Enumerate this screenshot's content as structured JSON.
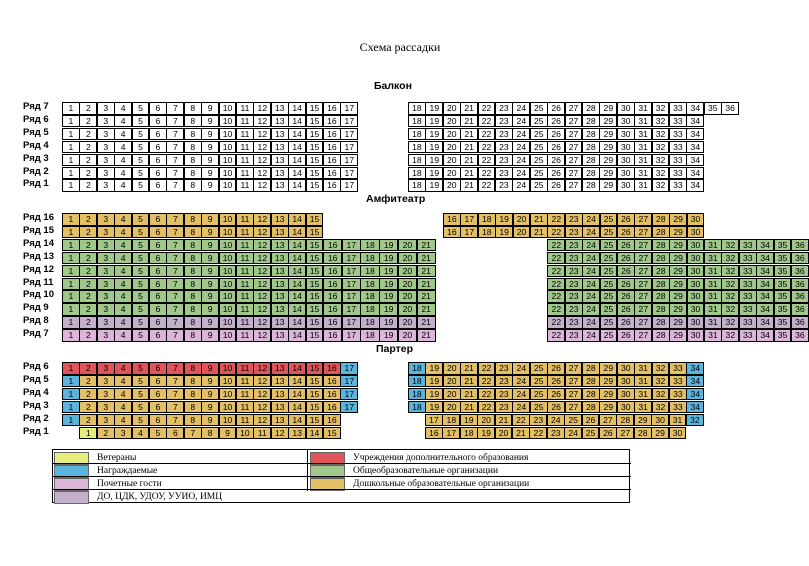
{
  "title": "Схема рассадки",
  "sections": {
    "balcony": "Балкон",
    "amphitheater": "Амфитеатр",
    "parterre": "Партер"
  },
  "row_prefix": "Ряд",
  "colors": {
    "none": "#ffffff",
    "yellow": "#e6ee7a",
    "blue": "#5bb4dc",
    "pink": "#dbb6d8",
    "purple": "#c4b0cc",
    "red": "#e0545a",
    "green": "#9fc88a",
    "orange": "#e3c065"
  },
  "balcony": [
    {
      "row": "7",
      "segments": [
        {
          "from": 1,
          "to": 17,
          "color": "none"
        },
        {
          "from": 18,
          "to": 36,
          "color": "none"
        }
      ]
    },
    {
      "row": "6",
      "segments": [
        {
          "from": 1,
          "to": 17,
          "color": "none"
        },
        {
          "from": 18,
          "to": 34,
          "color": "none"
        }
      ]
    },
    {
      "row": "5",
      "segments": [
        {
          "from": 1,
          "to": 17,
          "color": "none"
        },
        {
          "from": 18,
          "to": 34,
          "color": "none"
        }
      ]
    },
    {
      "row": "4",
      "segments": [
        {
          "from": 1,
          "to": 17,
          "color": "none"
        },
        {
          "from": 18,
          "to": 34,
          "color": "none"
        }
      ]
    },
    {
      "row": "3",
      "segments": [
        {
          "from": 1,
          "to": 17,
          "color": "none"
        },
        {
          "from": 18,
          "to": 34,
          "color": "none"
        }
      ]
    },
    {
      "row": "2",
      "segments": [
        {
          "from": 1,
          "to": 17,
          "color": "none"
        },
        {
          "from": 18,
          "to": 34,
          "color": "none"
        }
      ]
    },
    {
      "row": "1",
      "segments": [
        {
          "from": 1,
          "to": 17,
          "color": "none"
        },
        {
          "from": 18,
          "to": 34,
          "color": "none"
        }
      ]
    }
  ],
  "amphitheater": [
    {
      "row": "16",
      "segments": [
        {
          "from": 1,
          "to": 15,
          "color": "orange"
        },
        {
          "from": 16,
          "to": 30,
          "color": "orange"
        }
      ]
    },
    {
      "row": "15",
      "segments": [
        {
          "from": 1,
          "to": 15,
          "color": "orange"
        },
        {
          "from": 16,
          "to": 30,
          "color": "orange"
        }
      ]
    },
    {
      "row": "14",
      "segments": [
        {
          "from": 1,
          "to": 36,
          "color": "green"
        }
      ]
    },
    {
      "row": "13",
      "segments": [
        {
          "from": 1,
          "to": 36,
          "color": "green"
        }
      ]
    },
    {
      "row": "12",
      "segments": [
        {
          "from": 1,
          "to": 36,
          "color": "green"
        }
      ]
    },
    {
      "row": "11",
      "segments": [
        {
          "from": 1,
          "to": 36,
          "color": "green"
        }
      ]
    },
    {
      "row": "10",
      "segments": [
        {
          "from": 1,
          "to": 36,
          "color": "green"
        }
      ]
    },
    {
      "row": "9",
      "segments": [
        {
          "from": 1,
          "to": 36,
          "color": "green"
        }
      ]
    },
    {
      "row": "8",
      "segments": [
        {
          "from": 1,
          "to": 36,
          "color": "purple"
        }
      ]
    },
    {
      "row": "7",
      "segments": [
        {
          "from": 1,
          "to": 36,
          "color": "pink"
        }
      ]
    }
  ],
  "parterre": [
    {
      "row": "6",
      "segments": [
        {
          "from": 1,
          "to": 16,
          "color": "red"
        },
        {
          "from": 17,
          "to": 17,
          "color": "blue"
        },
        {
          "from": 18,
          "to": 18,
          "color": "blue"
        },
        {
          "from": 19,
          "to": 33,
          "color": "orange"
        },
        {
          "from": 34,
          "to": 34,
          "color": "blue"
        }
      ]
    },
    {
      "row": "5",
      "segments": [
        {
          "from": 1,
          "to": 1,
          "color": "blue"
        },
        {
          "from": 2,
          "to": 16,
          "color": "orange"
        },
        {
          "from": 17,
          "to": 17,
          "color": "blue"
        },
        {
          "from": 18,
          "to": 18,
          "color": "blue"
        },
        {
          "from": 19,
          "to": 33,
          "color": "orange"
        },
        {
          "from": 34,
          "to": 34,
          "color": "blue"
        }
      ]
    },
    {
      "row": "4",
      "segments": [
        {
          "from": 1,
          "to": 1,
          "color": "blue"
        },
        {
          "from": 2,
          "to": 16,
          "color": "orange"
        },
        {
          "from": 17,
          "to": 17,
          "color": "blue"
        },
        {
          "from": 18,
          "to": 18,
          "color": "blue"
        },
        {
          "from": 19,
          "to": 33,
          "color": "orange"
        },
        {
          "from": 34,
          "to": 34,
          "color": "blue"
        }
      ]
    },
    {
      "row": "3",
      "segments": [
        {
          "from": 1,
          "to": 1,
          "color": "blue"
        },
        {
          "from": 2,
          "to": 16,
          "color": "orange"
        },
        {
          "from": 17,
          "to": 17,
          "color": "blue"
        },
        {
          "from": 18,
          "to": 18,
          "color": "blue"
        },
        {
          "from": 19,
          "to": 33,
          "color": "orange"
        },
        {
          "from": 34,
          "to": 34,
          "color": "blue"
        }
      ]
    },
    {
      "row": "2",
      "segments": [
        {
          "from": 1,
          "to": 1,
          "color": "blue"
        },
        {
          "from": 2,
          "to": 16,
          "color": "orange"
        },
        {
          "from": 17,
          "to": 31,
          "color": "orange"
        },
        {
          "from": 32,
          "to": 32,
          "color": "blue"
        }
      ]
    },
    {
      "row": "1",
      "segments": [
        {
          "from": 1,
          "to": 1,
          "color": "yellow"
        },
        {
          "from": 2,
          "to": 15,
          "color": "orange"
        },
        {
          "from": 16,
          "to": 29,
          "color": "orange"
        },
        {
          "from": 30,
          "to": 30,
          "color": "orange"
        }
      ]
    }
  ],
  "legend": [
    {
      "color": "yellow",
      "label": "Ветераны"
    },
    {
      "color": "red",
      "label": "Учреждения дополнительного образования"
    },
    {
      "color": "blue",
      "label": "Награждаемые"
    },
    {
      "color": "green",
      "label": "Общеобразовательные организации"
    },
    {
      "color": "pink",
      "label": "Почетные гости"
    },
    {
      "color": "orange",
      "label": "Дошкольные образовательные организации"
    },
    {
      "color": "purple",
      "label": "ДО, ЦДК, УДОУ, УУИО, ИМЦ"
    }
  ]
}
